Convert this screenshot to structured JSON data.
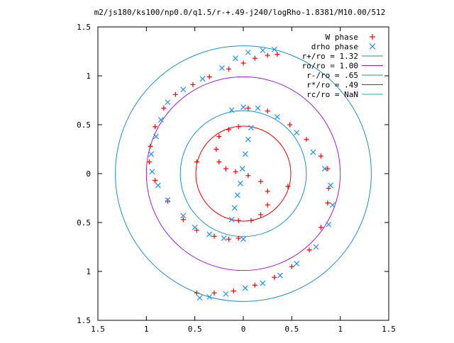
{
  "chart_data": {
    "type": "scatter",
    "title": "m2/js180/ks100/np0.0/q1.5/r-+.49-j240/logRho-1.8381/M10.00/512",
    "xlabel": "",
    "ylabel": "",
    "xlim": [
      -1.5,
      1.5
    ],
    "ylim": [
      -1.5,
      1.5
    ],
    "x_ticks": [
      "1.5",
      "1",
      "0.5",
      "0",
      "0.5",
      "1",
      "1.5"
    ],
    "y_ticks": [
      "1.5",
      "1",
      "0.5",
      "0",
      "0.5",
      "1",
      "1.5"
    ],
    "grid": false,
    "legend_position": "top-right",
    "series": [
      {
        "name": "W phase",
        "marker": "+",
        "color": "#ff0000",
        "points": [
          [
            0.35,
            1.22
          ],
          [
            0.25,
            1.21
          ],
          [
            0.12,
            1.18
          ],
          [
            0.0,
            1.13
          ],
          [
            -0.15,
            1.07
          ],
          [
            -0.35,
            0.99
          ],
          [
            -0.52,
            0.91
          ],
          [
            -0.7,
            0.81
          ],
          [
            -0.82,
            0.67
          ],
          [
            -0.91,
            0.48
          ],
          [
            -0.96,
            0.28
          ],
          [
            -0.97,
            0.12
          ],
          [
            -0.91,
            -0.07
          ],
          [
            -0.78,
            -0.28
          ],
          [
            -0.62,
            -0.47
          ],
          [
            -0.48,
            -0.58
          ],
          [
            -0.3,
            -0.64
          ],
          [
            -0.15,
            -0.67
          ],
          [
            -0.05,
            -0.66
          ],
          [
            0.05,
            0.67
          ],
          [
            0.25,
            0.64
          ],
          [
            0.48,
            0.5
          ],
          [
            0.65,
            0.35
          ],
          [
            0.8,
            0.18
          ],
          [
            0.87,
            0.05
          ],
          [
            0.88,
            -0.15
          ],
          [
            0.87,
            -0.3
          ],
          [
            0.8,
            -0.55
          ],
          [
            0.68,
            -0.78
          ],
          [
            0.5,
            -0.95
          ],
          [
            0.32,
            -1.06
          ],
          [
            0.12,
            -1.14
          ],
          [
            -0.1,
            -1.2
          ],
          [
            -0.3,
            -1.22
          ],
          [
            -0.48,
            -1.22
          ],
          [
            -0.05,
            0.48
          ],
          [
            -0.15,
            0.45
          ],
          [
            -0.25,
            0.38
          ],
          [
            -0.28,
            0.25
          ],
          [
            -0.25,
            0.12
          ],
          [
            -0.18,
            0.05
          ],
          [
            -0.08,
            0.02
          ],
          [
            0.05,
            -0.02
          ],
          [
            0.18,
            -0.08
          ],
          [
            0.25,
            -0.18
          ],
          [
            0.25,
            -0.32
          ],
          [
            0.18,
            -0.42
          ],
          [
            0.08,
            -0.48
          ],
          [
            -0.05,
            -0.48
          ],
          [
            -0.48,
            0.12
          ],
          [
            0.46,
            -0.13
          ]
        ]
      },
      {
        "name": "drho phase",
        "marker": "x",
        "color": "#1e90ff",
        "points": [
          [
            0.32,
            1.27
          ],
          [
            0.2,
            1.26
          ],
          [
            0.05,
            1.24
          ],
          [
            -0.08,
            1.18
          ],
          [
            -0.22,
            1.08
          ],
          [
            -0.42,
            0.97
          ],
          [
            -0.62,
            0.86
          ],
          [
            -0.78,
            0.73
          ],
          [
            -0.85,
            0.55
          ],
          [
            -0.9,
            0.38
          ],
          [
            -0.95,
            0.2
          ],
          [
            -0.94,
            0.02
          ],
          [
            -0.88,
            -0.12
          ],
          [
            -0.78,
            -0.27
          ],
          [
            -0.62,
            -0.43
          ],
          [
            -0.5,
            -0.55
          ],
          [
            -0.35,
            -0.62
          ],
          [
            -0.2,
            -0.66
          ],
          [
            0.0,
            -0.67
          ],
          [
            -0.12,
            0.65
          ],
          [
            0.0,
            0.68
          ],
          [
            0.15,
            0.67
          ],
          [
            0.35,
            0.58
          ],
          [
            0.55,
            0.42
          ],
          [
            0.72,
            0.22
          ],
          [
            0.84,
            0.05
          ],
          [
            0.9,
            -0.12
          ],
          [
            0.92,
            -0.32
          ],
          [
            0.88,
            -0.52
          ],
          [
            0.75,
            -0.75
          ],
          [
            0.55,
            -0.92
          ],
          [
            0.38,
            -1.04
          ],
          [
            0.2,
            -1.12
          ],
          [
            0.02,
            -1.17
          ],
          [
            -0.18,
            -1.23
          ],
          [
            -0.35,
            -1.26
          ],
          [
            -0.45,
            -1.27
          ],
          [
            0.08,
            0.47
          ],
          [
            0.05,
            0.35
          ],
          [
            0.02,
            0.2
          ],
          [
            -0.01,
            0.05
          ],
          [
            -0.03,
            -0.1
          ],
          [
            -0.06,
            -0.22
          ],
          [
            -0.09,
            -0.35
          ],
          [
            -0.12,
            -0.47
          ]
        ]
      },
      {
        "name": "r+/ro = 1.32",
        "type": "circle",
        "r": 1.32,
        "color": "#1f8ec8"
      },
      {
        "name": "ro/ro = 1.00",
        "type": "circle",
        "r": 1.0,
        "color": "#9b1fd0"
      },
      {
        "name": "r-/ro = .65",
        "type": "circle",
        "r": 0.65,
        "color": "#1f8ec8"
      },
      {
        "name": "r*/ro = .49",
        "type": "circle",
        "r": 0.49,
        "color": "#ee0000"
      },
      {
        "name": "rc/ro = NaN",
        "type": "circle",
        "r": null,
        "color": "#00c0c0"
      }
    ]
  }
}
